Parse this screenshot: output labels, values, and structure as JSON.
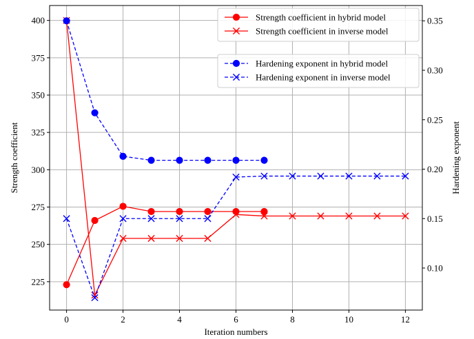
{
  "chart_data": {
    "type": "line",
    "xlabel": "Iteration numbers",
    "ylabel_left": "Strength coefficient",
    "ylabel_right": "Hardening exponent",
    "xlim": [
      -0.6,
      12.6
    ],
    "ylim_left": [
      206,
      410
    ],
    "ylim_right": [
      0.0575,
      0.3655
    ],
    "xticks": [
      0,
      2,
      4,
      6,
      8,
      10,
      12
    ],
    "yticks_left": [
      225,
      250,
      275,
      300,
      325,
      350,
      375,
      400
    ],
    "yticks_right": [
      0.1,
      0.15,
      0.2,
      0.25,
      0.3,
      0.35
    ],
    "yticks_right_labels": [
      "0.10",
      "0.15",
      "0.20",
      "0.25",
      "0.30",
      "0.35"
    ],
    "grid": true,
    "legends": [
      {
        "placement": "top-right",
        "entries": [
          "Strength coefficient in hybrid model",
          "Strength coefficient in inverse model"
        ]
      },
      {
        "placement": "upper-right",
        "entries": [
          "Hardening exponent in hybrid model",
          "Hardening exponent in inverse model"
        ]
      }
    ],
    "series": [
      {
        "name": "Strength coefficient in hybrid model",
        "axis": "left",
        "color": "#ff0000",
        "line": "solid",
        "marker": "circle",
        "x": [
          0,
          1,
          2,
          3,
          4,
          5,
          6,
          7
        ],
        "y": [
          223,
          266,
          275.5,
          272,
          272,
          272,
          272,
          272
        ]
      },
      {
        "name": "Strength coefficient in inverse model",
        "axis": "left",
        "color": "#ff0000",
        "line": "solid",
        "marker": "x",
        "x": [
          0,
          1,
          2,
          3,
          4,
          5,
          6,
          7,
          8,
          9,
          10,
          11,
          12
        ],
        "y": [
          400,
          216,
          254,
          254,
          254,
          254,
          270,
          269,
          269,
          269,
          269,
          269,
          269
        ]
      },
      {
        "name": "Hardening exponent in hybrid model",
        "axis": "right",
        "color": "#0000ff",
        "line": "dashed",
        "marker": "circle",
        "x": [
          0,
          1,
          2,
          3,
          4,
          5,
          6,
          7
        ],
        "y": [
          0.35,
          0.257,
          0.213,
          0.209,
          0.209,
          0.209,
          0.209,
          0.209
        ]
      },
      {
        "name": "Hardening exponent in inverse model",
        "axis": "right",
        "color": "#0000ff",
        "line": "dashed",
        "marker": "x",
        "x": [
          0,
          1,
          2,
          3,
          4,
          5,
          6,
          7,
          8,
          9,
          10,
          11,
          12
        ],
        "y": [
          0.15,
          0.07,
          0.15,
          0.15,
          0.15,
          0.15,
          0.192,
          0.193,
          0.193,
          0.193,
          0.193,
          0.193,
          0.193
        ]
      }
    ]
  }
}
